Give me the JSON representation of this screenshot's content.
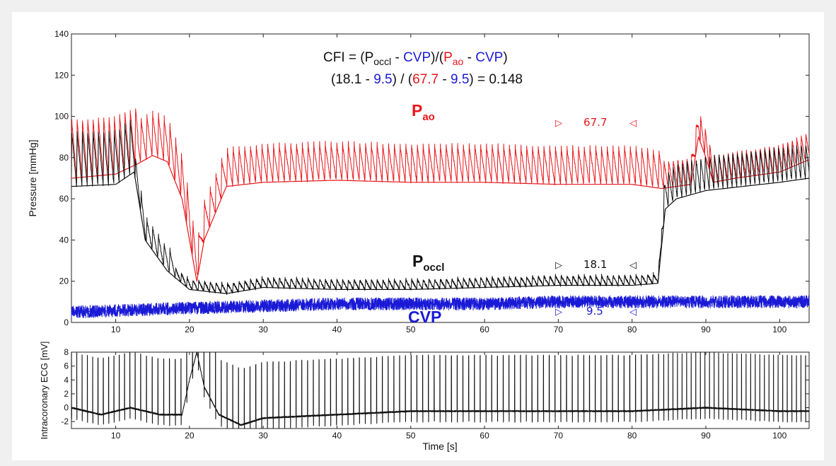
{
  "colors": {
    "paorta": "#e8161b",
    "poccl": "#111111",
    "cvp": "#1a1ad6",
    "ecg": "#111111"
  },
  "formula": {
    "line1": {
      "a": "CFI = (P",
      "b": "occl",
      "c": " - ",
      "d": "CVP",
      "e": ")/(",
      "f": "P",
      "g": "ao",
      "h": " - ",
      "i": "CVP",
      "j": ")"
    },
    "line2": {
      "a": "(18.1 - ",
      "b": "9.5",
      "c": ") / (",
      "d": "67.7",
      "e": " - ",
      "f": "9.5",
      "g": ") = 0.148"
    }
  },
  "labels": {
    "pao": {
      "main": "P",
      "sub": "ao"
    },
    "poccl": {
      "main": "P",
      "sub": "occl"
    },
    "cvp": "CVP"
  },
  "markers": {
    "pao": {
      "left": "▷",
      "value": "67.7",
      "right": "◁"
    },
    "poccl": {
      "left": "▷",
      "value": "18.1",
      "right": "◁"
    },
    "cvp": {
      "left": "▷",
      "value": "9.5",
      "right": "◁"
    }
  },
  "chart_data": [
    {
      "type": "line",
      "ylabel": "Pressure [mmHg]",
      "xlim": [
        4,
        104
      ],
      "ylim": [
        0,
        140
      ],
      "x_ticks": [
        10,
        20,
        30,
        40,
        50,
        60,
        70,
        80,
        90,
        100
      ],
      "y_ticks": [
        0,
        20,
        40,
        60,
        80,
        100,
        120,
        140
      ],
      "series": [
        {
          "name": "Pao",
          "color": "#e8161b",
          "x": [
            4,
            10,
            13,
            15,
            17,
            19,
            20,
            21,
            22,
            25,
            30,
            40,
            50,
            60,
            70,
            80,
            84,
            86,
            88,
            89,
            90,
            91,
            94,
            100,
            104
          ],
          "mean": [
            70,
            72,
            77,
            81,
            78,
            60,
            40,
            20,
            40,
            66,
            68,
            69,
            68,
            68,
            67,
            67,
            65,
            66,
            67,
            90,
            80,
            68,
            70,
            73,
            79
          ]
        },
        {
          "name": "Poccl",
          "color": "#111111",
          "x": [
            4,
            10,
            12.5,
            14,
            17,
            20,
            25,
            30,
            40,
            50,
            60,
            70,
            80,
            83.5,
            84.5,
            86,
            90,
            100,
            104
          ],
          "mean": [
            66,
            67,
            73,
            40,
            25,
            16,
            14,
            17,
            16,
            16,
            17,
            18,
            18,
            19,
            55,
            60,
            64,
            68,
            70
          ]
        },
        {
          "name": "CVP",
          "color": "#1a1ad6",
          "x": [
            4,
            20,
            30,
            40,
            50,
            60,
            70,
            80,
            84,
            90,
            100,
            104
          ],
          "mean": [
            5,
            7,
            8,
            9,
            9,
            9,
            10,
            10,
            10,
            10,
            10,
            10
          ]
        }
      ]
    },
    {
      "type": "line",
      "xlabel": "Time [s]",
      "ylabel": "Intracoronary ECG [mV]",
      "xlim": [
        4,
        104
      ],
      "ylim": [
        -3,
        8
      ],
      "x_ticks": [
        10,
        20,
        30,
        40,
        50,
        60,
        70,
        80,
        90,
        100
      ],
      "y_ticks": [
        -2,
        0,
        2,
        4,
        6,
        8
      ],
      "series": [
        {
          "name": "ECG",
          "color": "#111111",
          "x": [
            4,
            8,
            12,
            16,
            19,
            20,
            21,
            22,
            24,
            27,
            30,
            40,
            50,
            60,
            70,
            80,
            90,
            100,
            104
          ],
          "baseline": [
            0,
            -1,
            0,
            -1,
            -1,
            4,
            8,
            3,
            -1,
            -2.5,
            -1.5,
            -1,
            -0.5,
            -0.5,
            -0.5,
            -0.5,
            0,
            -0.5,
            -0.5
          ]
        }
      ]
    }
  ]
}
